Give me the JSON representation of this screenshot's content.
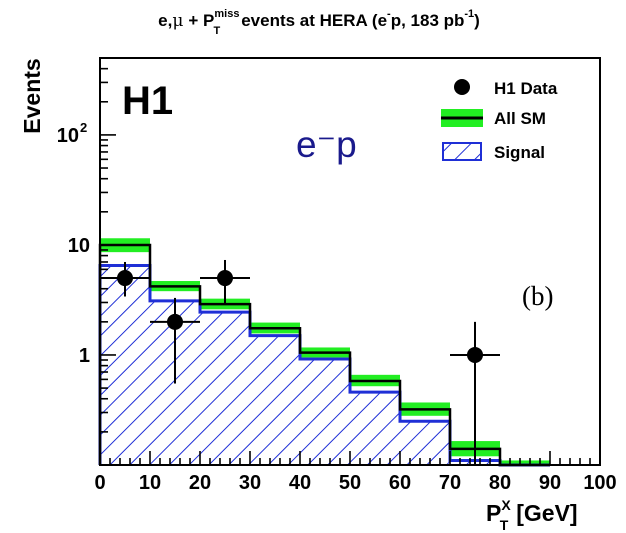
{
  "chart_data": {
    "type": "bar",
    "title": {
      "prefix": "e,",
      "mu": "μ",
      "plus": "+ P",
      "sup": "miss",
      "sub": "T",
      "rest1": "events at HERA (e",
      "minus": "-",
      "rest2": "p, 183 pb",
      "lumi_exp": "-1",
      "close": ")"
    },
    "experiment_label": "H1",
    "beam_label": "e⁻p",
    "panel_label": "(b)",
    "ylabel": "Events",
    "xlabel": {
      "main": "P",
      "sup": "X",
      "sub": "T",
      "unit": "[GeV]"
    },
    "x_ticks": [
      "0",
      "10",
      "20",
      "30",
      "40",
      "50",
      "60",
      "70",
      "80",
      "90",
      "100"
    ],
    "y_ticks": [
      {
        "value": 1,
        "label": "1"
      },
      {
        "value": 10,
        "label": "10"
      },
      {
        "value": 100,
        "label": "10",
        "exp": "2"
      }
    ],
    "xlim": [
      0,
      100
    ],
    "ylim": [
      0.1,
      500
    ],
    "yscale": "log",
    "legend": {
      "placement": "top-right",
      "entries": [
        "H1 Data",
        "All SM",
        "Signal"
      ]
    },
    "colors": {
      "sm_band": "#22ee22",
      "sm_line": "#000000",
      "signal": "#1f2fd6",
      "data": "#000000",
      "beam_label": "#1a1a8c"
    },
    "bin_edges": [
      0,
      10,
      20,
      30,
      40,
      50,
      60,
      70,
      80,
      90
    ],
    "series": [
      {
        "name": "All SM",
        "kind": "step_with_band",
        "values": [
          10.0,
          4.2,
          2.9,
          1.75,
          1.05,
          0.58,
          0.32,
          0.14,
          0.1
        ],
        "band_low": [
          8.6,
          3.8,
          2.6,
          1.57,
          0.95,
          0.52,
          0.28,
          0.12,
          0.09
        ],
        "band_high": [
          11.5,
          4.7,
          3.25,
          1.97,
          1.17,
          0.66,
          0.37,
          0.165,
          0.11
        ]
      },
      {
        "name": "Signal",
        "kind": "hatched_step",
        "values": [
          6.5,
          3.1,
          2.45,
          1.5,
          0.92,
          0.46,
          0.25,
          0.11,
          0.1
        ]
      },
      {
        "name": "H1 Data",
        "kind": "points",
        "points": [
          {
            "x": 5,
            "y": 5,
            "xerr": 5,
            "ylow": 3.4,
            "yhigh": 7.0
          },
          {
            "x": 15,
            "y": 2,
            "xerr": 5,
            "ylow": 0.55,
            "yhigh": 3.3
          },
          {
            "x": 25,
            "y": 5,
            "xerr": 5,
            "ylow": 2.9,
            "yhigh": 7.3
          },
          {
            "x": 75,
            "y": 1,
            "xerr": 5,
            "ylow": 0.1,
            "yhigh": 2.0
          }
        ]
      }
    ]
  }
}
